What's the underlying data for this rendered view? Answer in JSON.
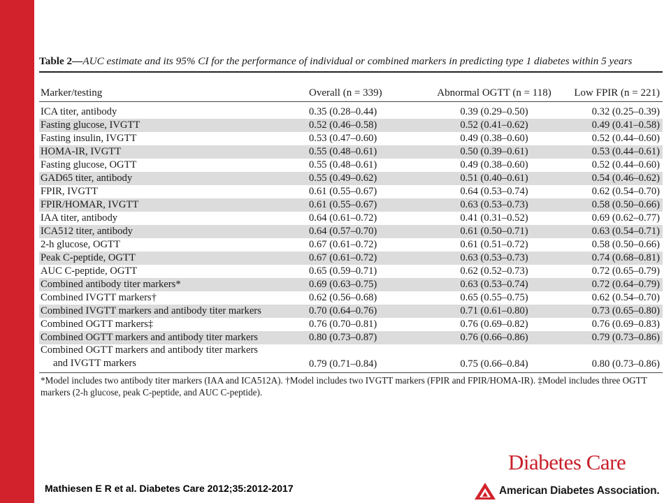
{
  "table": {
    "label": "Table 2—",
    "title": "AUC estimate and its 95% CI for the performance of individual or combined markers in predicting type 1 diabetes within 5 years",
    "columns": [
      "Marker/testing",
      "Overall (n = 339)",
      "Abnormal OGTT (n = 118)",
      "Low FPIR (n = 221)"
    ],
    "rows": [
      {
        "marker": "ICA titer, antibody",
        "overall": "0.35 (0.28–0.44)",
        "ogtt": "0.39 (0.29–0.50)",
        "fpir": "0.32 (0.25–0.39)"
      },
      {
        "marker": "Fasting glucose, IVGTT",
        "overall": "0.52 (0.46–0.58)",
        "ogtt": "0.52 (0.41–0.62)",
        "fpir": "0.49 (0.41–0.58)"
      },
      {
        "marker": "Fasting insulin, IVGTT",
        "overall": "0.53 (0.47–0.60)",
        "ogtt": "0.49 (0.38–0.60)",
        "fpir": "0.52 (0.44–0.60)"
      },
      {
        "marker": "HOMA-IR, IVGTT",
        "overall": "0.55 (0.48–0.61)",
        "ogtt": "0.50 (0.39–0.61)",
        "fpir": "0.53 (0.44–0.61)"
      },
      {
        "marker": "Fasting glucose, OGTT",
        "overall": "0.55 (0.48–0.61)",
        "ogtt": "0.49 (0.38–0.60)",
        "fpir": "0.52 (0.44–0.60)"
      },
      {
        "marker": "GAD65 titer, antibody",
        "overall": "0.55 (0.49–0.62)",
        "ogtt": "0.51 (0.40–0.61)",
        "fpir": "0.54 (0.46–0.62)"
      },
      {
        "marker": "FPIR, IVGTT",
        "overall": "0.61 (0.55–0.67)",
        "ogtt": "0.64 (0.53–0.74)",
        "fpir": "0.62 (0.54–0.70)"
      },
      {
        "marker": "FPIR/HOMAR, IVGTT",
        "overall": "0.61 (0.55–0.67)",
        "ogtt": "0.63 (0.53–0.73)",
        "fpir": "0.58 (0.50–0.66)"
      },
      {
        "marker": "IAA titer, antibody",
        "overall": "0.64 (0.61–0.72)",
        "ogtt": "0.41 (0.31–0.52)",
        "fpir": "0.69 (0.62–0.77)"
      },
      {
        "marker": "ICA512 titer, antibody",
        "overall": "0.64 (0.57–0.70)",
        "ogtt": "0.61 (0.50–0.71)",
        "fpir": "0.63 (0.54–0.71)"
      },
      {
        "marker": "2-h glucose, OGTT",
        "overall": "0.67 (0.61–0.72)",
        "ogtt": "0.61 (0.51–0.72)",
        "fpir": "0.58 (0.50–0.66)"
      },
      {
        "marker": "Peak C-peptide, OGTT",
        "overall": "0.67 (0.61–0.72)",
        "ogtt": "0.63 (0.53–0.73)",
        "fpir": "0.74 (0.68–0.81)"
      },
      {
        "marker": "AUC C-peptide, OGTT",
        "overall": "0.65 (0.59–0.71)",
        "ogtt": "0.62 (0.52–0.73)",
        "fpir": "0.72 (0.65–0.79)"
      },
      {
        "marker": "Combined antibody titer markers*",
        "overall": "0.69 (0.63–0.75)",
        "ogtt": "0.63 (0.53–0.74)",
        "fpir": "0.72 (0.64–0.79)"
      },
      {
        "marker": "Combined IVGTT markers†",
        "overall": "0.62 (0.56–0.68)",
        "ogtt": "0.65 (0.55–0.75)",
        "fpir": "0.62 (0.54–0.70)"
      },
      {
        "marker": "Combined IVGTT markers and antibody titer markers",
        "overall": "0.70 (0.64–0.76)",
        "ogtt": "0.71 (0.61–0.80)",
        "fpir": "0.73 (0.65–0.80)"
      },
      {
        "marker": "Combined OGTT markers‡",
        "overall": "0.76 (0.70–0.81)",
        "ogtt": "0.76 (0.69–0.82)",
        "fpir": "0.76 (0.69–0.83)"
      },
      {
        "marker": "Combined OGTT markers and antibody titer markers",
        "overall": "0.80 (0.73–0.87)",
        "ogtt": "0.76 (0.66–0.86)",
        "fpir": "0.79 (0.73–0.86)"
      }
    ],
    "last_row": {
      "marker_line1": "Combined OGTT markers and antibody titer markers",
      "marker_line2": "and IVGTT markers",
      "overall": "0.79 (0.71–0.84)",
      "ogtt": "0.75 (0.66–0.84)",
      "fpir": "0.80 (0.73–0.86)"
    },
    "footnote": "*Model includes two antibody titer markers (IAA and ICA512A). †Model includes two IVGTT markers (FPIR and FPIR/HOMA-IR). ‡Model includes three OGTT markers (2-h glucose, peak C-peptide, and AUC C-peptide)."
  },
  "citation": "Mathiesen E R et al. Diabetes Care 2012;35:2012-2017",
  "branding": {
    "journal": "Diabetes Care",
    "organization": "American Diabetes Association.",
    "accent_color": "#d2222b"
  }
}
